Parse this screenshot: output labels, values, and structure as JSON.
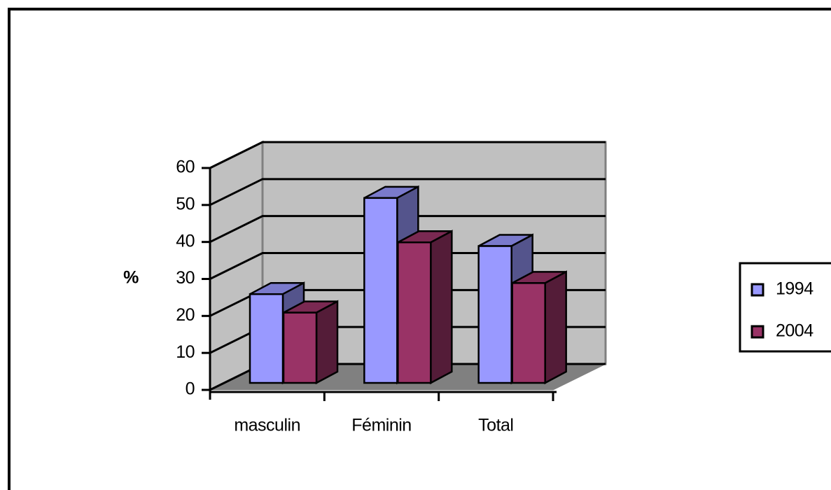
{
  "chart_data": {
    "type": "bar",
    "y_label": "%",
    "categories": [
      "masculin",
      "Féminin",
      "Total"
    ],
    "series": [
      {
        "name": "1994",
        "color": "#9999ff",
        "values": [
          24,
          50,
          37
        ]
      },
      {
        "name": "2004",
        "color": "#993366",
        "values": [
          19,
          38,
          27
        ]
      }
    ],
    "ylim": [
      0,
      60
    ],
    "yticks": [
      0,
      10,
      20,
      30,
      40,
      50,
      60
    ],
    "grid": true,
    "legend": "right"
  }
}
